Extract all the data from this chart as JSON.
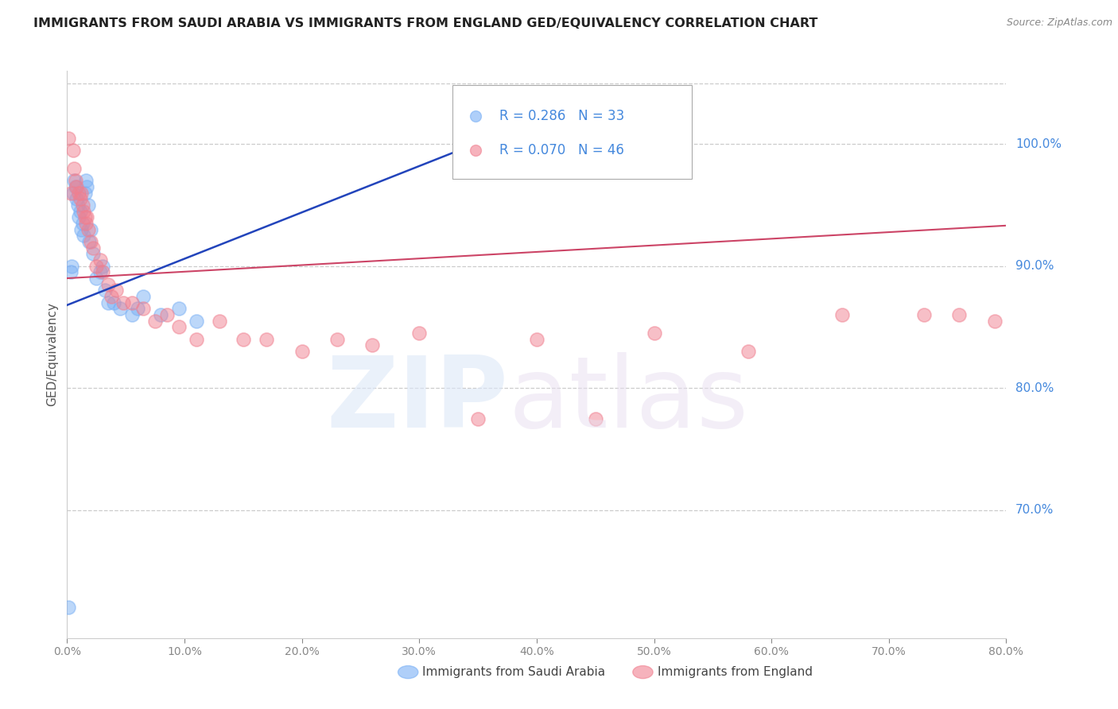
{
  "title": "IMMIGRANTS FROM SAUDI ARABIA VS IMMIGRANTS FROM ENGLAND GED/EQUIVALENCY CORRELATION CHART",
  "source": "Source: ZipAtlas.com",
  "ylabel": "GED/Equivalency",
  "right_yticks": [
    1.0,
    0.9,
    0.8,
    0.7
  ],
  "right_yticklabels": [
    "100.0%",
    "90.0%",
    "80.0%",
    "70.0%"
  ],
  "saudi_color": "#7ab0f5",
  "england_color": "#f08090",
  "trend_saudi_color": "#2244bb",
  "trend_england_color": "#cc4466",
  "xmin": 0.0,
  "xmax": 0.8,
  "ymin": 0.595,
  "ymax": 1.06,
  "saudi_x": [
    0.001,
    0.003,
    0.004,
    0.005,
    0.006,
    0.007,
    0.008,
    0.009,
    0.01,
    0.011,
    0.012,
    0.013,
    0.014,
    0.015,
    0.016,
    0.017,
    0.018,
    0.019,
    0.02,
    0.022,
    0.025,
    0.028,
    0.03,
    0.032,
    0.035,
    0.04,
    0.045,
    0.055,
    0.06,
    0.065,
    0.08,
    0.095,
    0.11
  ],
  "saudi_y": [
    0.62,
    0.895,
    0.9,
    0.96,
    0.97,
    0.965,
    0.955,
    0.95,
    0.94,
    0.945,
    0.93,
    0.935,
    0.925,
    0.96,
    0.97,
    0.965,
    0.95,
    0.92,
    0.93,
    0.91,
    0.89,
    0.895,
    0.9,
    0.88,
    0.87,
    0.87,
    0.865,
    0.86,
    0.865,
    0.875,
    0.86,
    0.865,
    0.855
  ],
  "england_x": [
    0.001,
    0.003,
    0.005,
    0.006,
    0.007,
    0.008,
    0.01,
    0.011,
    0.012,
    0.013,
    0.014,
    0.015,
    0.016,
    0.017,
    0.018,
    0.02,
    0.022,
    0.025,
    0.028,
    0.03,
    0.035,
    0.038,
    0.042,
    0.048,
    0.055,
    0.065,
    0.075,
    0.085,
    0.095,
    0.11,
    0.13,
    0.15,
    0.17,
    0.2,
    0.23,
    0.26,
    0.3,
    0.35,
    0.4,
    0.45,
    0.5,
    0.58,
    0.66,
    0.73,
    0.76,
    0.79
  ],
  "england_y": [
    1.005,
    0.96,
    0.995,
    0.98,
    0.97,
    0.965,
    0.96,
    0.955,
    0.96,
    0.95,
    0.945,
    0.94,
    0.935,
    0.94,
    0.93,
    0.92,
    0.915,
    0.9,
    0.905,
    0.895,
    0.885,
    0.875,
    0.88,
    0.87,
    0.87,
    0.865,
    0.855,
    0.86,
    0.85,
    0.84,
    0.855,
    0.84,
    0.84,
    0.83,
    0.84,
    0.835,
    0.845,
    0.775,
    0.84,
    0.775,
    0.845,
    0.83,
    0.86,
    0.86,
    0.86,
    0.855
  ],
  "legend_r1": "0.286",
  "legend_n1": "33",
  "legend_r2": "0.070",
  "legend_n2": "46"
}
